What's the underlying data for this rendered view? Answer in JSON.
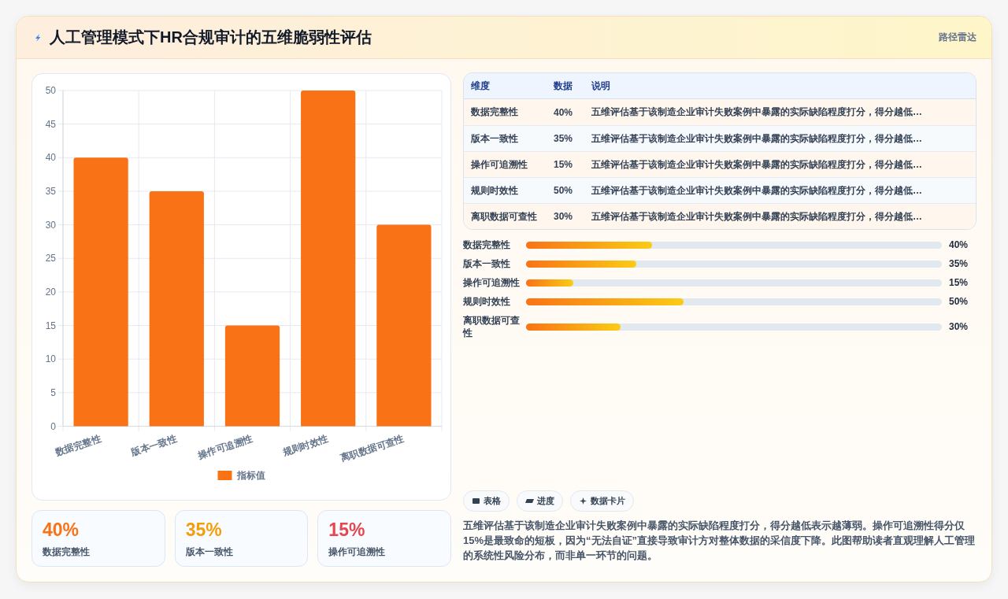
{
  "chart_data": [
    {
      "type": "bar",
      "title": "人工管理模式下HR合规审计的五维脆弱性评估",
      "annotations": [
        "路径雷达"
      ],
      "categories": [
        "数据完整性",
        "版本一致性",
        "操作可追溯性",
        "规则时效性",
        "离职数据可查性"
      ],
      "series": [
        {
          "name": "指标值",
          "color": "#f97316",
          "values": [
            40,
            35,
            15,
            50,
            30
          ]
        }
      ],
      "ylim": [
        0,
        50
      ],
      "yticks": [
        0,
        5,
        10,
        15,
        20,
        25,
        30,
        35,
        40,
        45,
        50
      ],
      "grid": true,
      "legend": "bottom"
    },
    {
      "type": "other",
      "categories": [
        "数据完整性",
        "版本一致性",
        "操作可追溯性",
        "规则时效性",
        "离职数据可查性"
      ],
      "value_labels": [
        "40%",
        "35%",
        "15%",
        "50%",
        "30%"
      ],
      "annotations": [
        "维度",
        "数据",
        "说明",
        "五维评估基于该制造企业审计失败案例中暴露的实际缺陷程度打分，得分越低…",
        "五维评估基于该制造企业审计失败案例中暴露的实际缺陷程度打分，得分越低…",
        "五维评估基于该制造企业审计失败案例中暴露的实际缺陷程度打分，得分越低…",
        "五维评估基于该制造企业审计失败案例中暴露的实际缺陷程度打分，得分越低…",
        "五维评估基于该制造企业审计失败案例中暴露的实际缺陷程度打分，得分越低…"
      ]
    },
    {
      "type": "bar",
      "orientation": "horizontal",
      "categories": [
        "数据完整性",
        "版本一致性",
        "操作可追溯性",
        "规则时效性",
        "离职数据可查性"
      ],
      "values": [
        40,
        35,
        15,
        50,
        30
      ],
      "color": "#f97316",
      "value_labels": [
        "40%",
        "35%",
        "15%",
        "50%",
        "30%"
      ],
      "xlim": [
        0,
        132
      ],
      "tick_labels": "y"
    },
    {
      "type": "other",
      "categories": [
        "数据完整性",
        "版本一致性",
        "操作可追溯性"
      ],
      "value_labels": [
        "40%",
        "35%",
        "15%"
      ]
    },
    {
      "type": "other",
      "annotations": [
        "表格",
        "进度",
        "数据卡片",
        "五维评估基于该制造企业审计失败案例中暴露的实际缺陷程度打分，得分越低表示越薄弱。操作可追溯性得分仅15%是最致命的短板，因为“无法自证”直接导致审计方对整体数据的采信度下降。此图帮助读者直观理解人工管理的系统性风险分布，而非单一环节的问题。"
      ]
    }
  ]
}
